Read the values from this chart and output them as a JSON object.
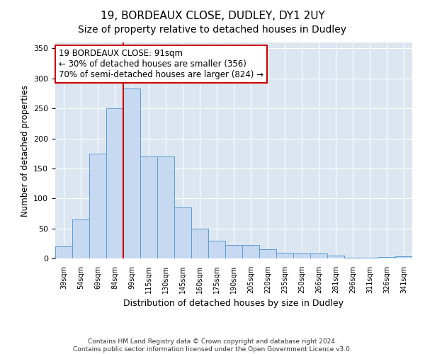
{
  "title1": "19, BORDEAUX CLOSE, DUDLEY, DY1 2UY",
  "title2": "Size of property relative to detached houses in Dudley",
  "xlabel": "Distribution of detached houses by size in Dudley",
  "ylabel": "Number of detached properties",
  "categories": [
    "39sqm",
    "54sqm",
    "69sqm",
    "84sqm",
    "99sqm",
    "115sqm",
    "130sqm",
    "145sqm",
    "160sqm",
    "175sqm",
    "190sqm",
    "205sqm",
    "220sqm",
    "235sqm",
    "250sqm",
    "266sqm",
    "281sqm",
    "296sqm",
    "311sqm",
    "326sqm",
    "341sqm"
  ],
  "values": [
    20,
    65,
    175,
    250,
    283,
    170,
    170,
    85,
    50,
    30,
    22,
    22,
    15,
    10,
    8,
    8,
    5,
    1,
    1,
    2,
    3
  ],
  "bar_color": "#c6d9f0",
  "bar_edge_color": "#5b9bd5",
  "vline_color": "#cc0000",
  "vline_x_index": 4,
  "annotation_text": "19 BORDEAUX CLOSE: 91sqm\n← 30% of detached houses are smaller (356)\n70% of semi-detached houses are larger (824) →",
  "annotation_box_color": "#ffffff",
  "annotation_box_edge": "#cc0000",
  "ylim": [
    0,
    360
  ],
  "yticks": [
    0,
    50,
    100,
    150,
    200,
    250,
    300,
    350
  ],
  "footer1": "Contains HM Land Registry data © Crown copyright and database right 2024.",
  "footer2": "Contains public sector information licensed under the Open Government Licence v3.0.",
  "plot_bg_color": "#dce6f1",
  "grid_color": "#ffffff",
  "title1_fontsize": 11,
  "title2_fontsize": 10
}
